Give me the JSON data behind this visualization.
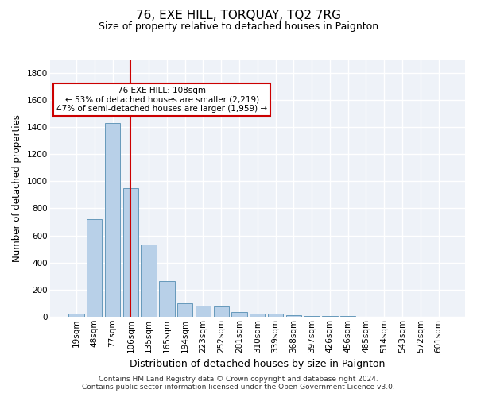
{
  "title": "76, EXE HILL, TORQUAY, TQ2 7RG",
  "subtitle": "Size of property relative to detached houses in Paignton",
  "xlabel": "Distribution of detached houses by size in Paignton",
  "ylabel": "Number of detached properties",
  "categories": [
    "19sqm",
    "48sqm",
    "77sqm",
    "106sqm",
    "135sqm",
    "165sqm",
    "194sqm",
    "223sqm",
    "252sqm",
    "281sqm",
    "310sqm",
    "339sqm",
    "368sqm",
    "397sqm",
    "426sqm",
    "456sqm",
    "485sqm",
    "514sqm",
    "543sqm",
    "572sqm",
    "601sqm"
  ],
  "bar_heights": [
    20,
    720,
    1430,
    950,
    530,
    265,
    100,
    80,
    75,
    35,
    25,
    20,
    10,
    5,
    3,
    2,
    1,
    0,
    0,
    0,
    0
  ],
  "bar_color": "#b8d0e8",
  "bar_edge_color": "#6699bb",
  "vline_x_index": 3,
  "vline_color": "#cc0000",
  "ylim": [
    0,
    1900
  ],
  "yticks": [
    0,
    200,
    400,
    600,
    800,
    1000,
    1200,
    1400,
    1600,
    1800
  ],
  "annotation_text": "76 EXE HILL: 108sqm\n← 53% of detached houses are smaller (2,219)\n47% of semi-detached houses are larger (1,959) →",
  "annotation_box_color": "#ffffff",
  "annotation_box_edge_color": "#cc0000",
  "footer_line1": "Contains HM Land Registry data © Crown copyright and database right 2024.",
  "footer_line2": "Contains public sector information licensed under the Open Government Licence v3.0.",
  "background_color": "#eef2f8",
  "grid_color": "#ffffff",
  "title_fontsize": 11,
  "subtitle_fontsize": 9,
  "tick_fontsize": 7.5,
  "ylabel_fontsize": 8.5,
  "xlabel_fontsize": 9,
  "footer_fontsize": 6.5,
  "annotation_fontsize": 7.5
}
